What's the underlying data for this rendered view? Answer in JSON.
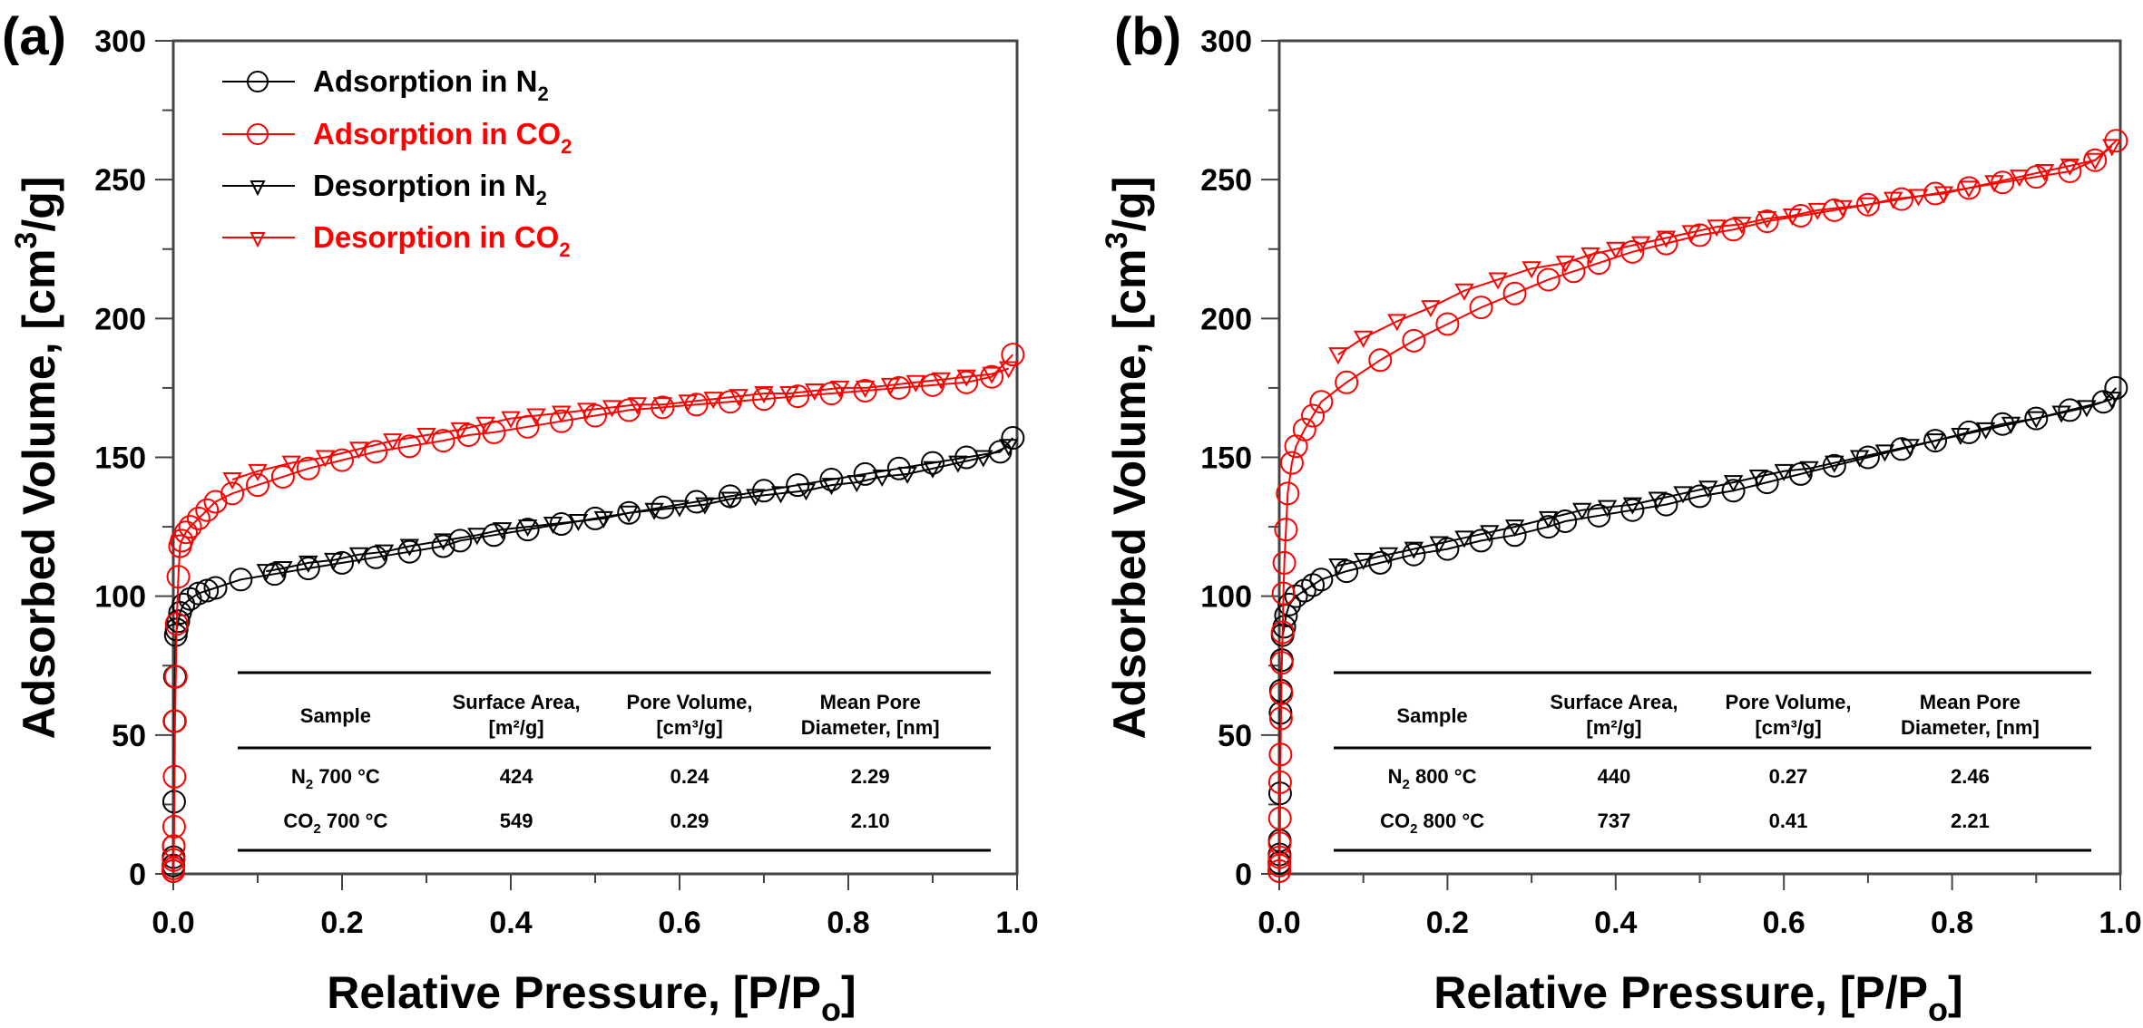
{
  "chart_data": [
    {
      "type": "scatter",
      "panel_label": "(a)",
      "xlabel": "Relative Pressure, [P/Po]",
      "xlabel_main": "Relative Pressure, [P/P",
      "xlabel_sub": "o",
      "xlabel_end": "]",
      "ylabel": "Adsorbed Volume, [cm3/g]",
      "ylabel_main": "Adsorbed Volume, [cm",
      "ylabel_sup": "3",
      "ylabel_end": "/g]",
      "xlim": [
        0,
        1.0
      ],
      "ylim": [
        0,
        300
      ],
      "xticks": [
        "0.0",
        "0.2",
        "0.4",
        "0.6",
        "0.8",
        "1.0"
      ],
      "yticks": [
        "0",
        "50",
        "100",
        "150",
        "200",
        "250",
        "300"
      ],
      "legend_position": "top-left",
      "legend": [
        {
          "main": "Adsorption in N",
          "sub": "2",
          "color": "#000000",
          "marker": "circle"
        },
        {
          "main": "Adsorption in CO",
          "sub": "2",
          "color": "#ff0000",
          "marker": "circle"
        },
        {
          "main": "Desorption in N",
          "sub": "2",
          "color": "#000000",
          "marker": "triangle-down"
        },
        {
          "main": "Desorption in CO",
          "sub": "2",
          "color": "#ff0000",
          "marker": "triangle-down"
        }
      ],
      "series": [
        {
          "name": "Adsorption in N2",
          "color": "#000000",
          "marker": "circle",
          "x": [
            0.0001,
            0.0002,
            0.0004,
            0.0006,
            0.001,
            0.0015,
            0.002,
            0.003,
            0.004,
            0.006,
            0.008,
            0.012,
            0.02,
            0.03,
            0.04,
            0.05,
            0.08,
            0.12,
            0.16,
            0.2,
            0.24,
            0.28,
            0.32,
            0.34,
            0.38,
            0.42,
            0.46,
            0.5,
            0.54,
            0.58,
            0.62,
            0.66,
            0.7,
            0.74,
            0.78,
            0.82,
            0.86,
            0.9,
            0.94,
            0.98,
            0.995
          ],
          "y": [
            1,
            3,
            6,
            10,
            26,
            55,
            71,
            86,
            88,
            91,
            94,
            97,
            99,
            101,
            102,
            103,
            106,
            108,
            110,
            112,
            114,
            116,
            118,
            120,
            122,
            124,
            126,
            128,
            130,
            132,
            134,
            136,
            138,
            140,
            142,
            144,
            146,
            148,
            150,
            152,
            157
          ]
        },
        {
          "name": "Adsorption in CO2",
          "color": "#ff0000",
          "marker": "circle",
          "x": [
            0.0001,
            0.0002,
            0.0004,
            0.0006,
            0.001,
            0.0015,
            0.002,
            0.003,
            0.004,
            0.006,
            0.008,
            0.01,
            0.015,
            0.02,
            0.03,
            0.04,
            0.05,
            0.07,
            0.1,
            0.13,
            0.16,
            0.2,
            0.24,
            0.28,
            0.32,
            0.35,
            0.38,
            0.42,
            0.46,
            0.5,
            0.54,
            0.58,
            0.62,
            0.66,
            0.7,
            0.74,
            0.78,
            0.82,
            0.86,
            0.9,
            0.94,
            0.97,
            0.995
          ],
          "y": [
            1,
            2,
            5,
            10,
            17,
            35,
            55,
            71,
            90,
            107,
            118,
            120,
            123,
            125,
            128,
            131,
            134,
            137,
            140,
            143,
            146,
            149,
            152,
            154,
            156,
            158,
            159,
            161,
            163,
            165,
            167,
            168,
            169,
            170,
            171,
            172,
            173,
            174,
            175,
            176,
            177,
            179,
            187
          ]
        },
        {
          "name": "Desorption in N2",
          "color": "#000000",
          "marker": "triangle-down",
          "x": [
            0.99,
            0.96,
            0.93,
            0.9,
            0.87,
            0.84,
            0.81,
            0.78,
            0.75,
            0.72,
            0.69,
            0.66,
            0.63,
            0.6,
            0.57,
            0.54,
            0.51,
            0.48,
            0.45,
            0.42,
            0.39,
            0.36,
            0.32,
            0.28,
            0.25,
            0.22,
            0.19,
            0.16,
            0.13,
            0.11
          ],
          "y": [
            154,
            150,
            148,
            146,
            144,
            143,
            141,
            140,
            138,
            137,
            136,
            135,
            133,
            132,
            131,
            130,
            128,
            127,
            126,
            125,
            124,
            122,
            120,
            118,
            116,
            115,
            113,
            112,
            110,
            109
          ]
        },
        {
          "name": "Desorption in CO2",
          "color": "#ff0000",
          "marker": "triangle-down",
          "x": [
            0.99,
            0.97,
            0.94,
            0.91,
            0.88,
            0.85,
            0.82,
            0.79,
            0.76,
            0.73,
            0.7,
            0.67,
            0.64,
            0.61,
            0.58,
            0.55,
            0.52,
            0.49,
            0.46,
            0.43,
            0.4,
            0.37,
            0.34,
            0.3,
            0.26,
            0.22,
            0.18,
            0.14,
            0.1,
            0.07
          ],
          "y": [
            182,
            180,
            179,
            178,
            177,
            176,
            175,
            175,
            174,
            173,
            173,
            172,
            171,
            170,
            169,
            169,
            168,
            167,
            166,
            165,
            164,
            162,
            160,
            158,
            156,
            153,
            150,
            148,
            145,
            142
          ]
        }
      ],
      "table": {
        "headers": [
          {
            "line1": "Sample",
            "line2": ""
          },
          {
            "line1": "Surface Area,",
            "line2": "[m²/g]"
          },
          {
            "line1": "Pore Volume,",
            "line2": "[cm³/g]"
          },
          {
            "line1": "Mean Pore",
            "line2": "Diameter, [nm]"
          }
        ],
        "rows": [
          {
            "sample_main": "N",
            "sample_sub": "2",
            "sample_rest": " 700 °C",
            "surface_area": "424",
            "pore_volume": "0.24",
            "pore_diameter": "2.29"
          },
          {
            "sample_main": "CO",
            "sample_sub": "2",
            "sample_rest": " 700 °C",
            "surface_area": "549",
            "pore_volume": "0.29",
            "pore_diameter": "2.10"
          }
        ]
      }
    },
    {
      "type": "scatter",
      "panel_label": "(b)",
      "xlabel": "Relative Pressure, [P/Po]",
      "xlabel_main": "Relative Pressure, [P/P",
      "xlabel_sub": "o",
      "xlabel_end": "]",
      "ylabel": "Adsorbed Volume, [cm3/g]",
      "ylabel_main": "Adsorbed Volume, [cm",
      "ylabel_sup": "3",
      "ylabel_end": "/g]",
      "xlim": [
        0,
        1.0
      ],
      "ylim": [
        0,
        300
      ],
      "xticks": [
        "0.0",
        "0.2",
        "0.4",
        "0.6",
        "0.8",
        "1.0"
      ],
      "yticks": [
        "0",
        "50",
        "100",
        "150",
        "200",
        "250",
        "300"
      ],
      "series": [
        {
          "name": "Adsorption in N2",
          "color": "#000000",
          "marker": "circle",
          "x": [
            0.0001,
            0.0002,
            0.0004,
            0.0006,
            0.001,
            0.0015,
            0.002,
            0.003,
            0.004,
            0.006,
            0.008,
            0.012,
            0.02,
            0.03,
            0.04,
            0.05,
            0.08,
            0.12,
            0.16,
            0.2,
            0.24,
            0.28,
            0.32,
            0.34,
            0.38,
            0.42,
            0.46,
            0.5,
            0.54,
            0.58,
            0.62,
            0.66,
            0.7,
            0.74,
            0.78,
            0.82,
            0.86,
            0.9,
            0.94,
            0.98,
            0.995
          ],
          "y": [
            1,
            4,
            7,
            12,
            29,
            58,
            66,
            77,
            86,
            89,
            93,
            97,
            100,
            102,
            104,
            106,
            109,
            112,
            115,
            117,
            120,
            122,
            125,
            127,
            129,
            131,
            133,
            136,
            138,
            141,
            144,
            147,
            150,
            153,
            156,
            159,
            162,
            164,
            167,
            170,
            175
          ]
        },
        {
          "name": "Adsorption in CO2",
          "color": "#ff0000",
          "marker": "circle",
          "x": [
            0.0001,
            0.0002,
            0.0004,
            0.0006,
            0.0008,
            0.001,
            0.0015,
            0.002,
            0.0025,
            0.003,
            0.004,
            0.005,
            0.006,
            0.008,
            0.01,
            0.015,
            0.02,
            0.03,
            0.04,
            0.05,
            0.08,
            0.12,
            0.16,
            0.2,
            0.24,
            0.28,
            0.32,
            0.35,
            0.38,
            0.42,
            0.46,
            0.5,
            0.54,
            0.58,
            0.62,
            0.66,
            0.7,
            0.74,
            0.78,
            0.82,
            0.86,
            0.9,
            0.94,
            0.97,
            0.995
          ],
          "y": [
            1,
            3,
            6,
            11,
            20,
            33,
            43,
            56,
            65,
            76,
            87,
            101,
            112,
            124,
            137,
            148,
            154,
            160,
            165,
            170,
            177,
            185,
            192,
            198,
            204,
            209,
            214,
            217,
            220,
            224,
            227,
            230,
            232,
            235,
            237,
            239,
            241,
            243,
            245,
            247,
            249,
            251,
            253,
            257,
            264
          ]
        },
        {
          "name": "Desorption in N2",
          "color": "#000000",
          "marker": "triangle-down",
          "x": [
            0.99,
            0.96,
            0.93,
            0.9,
            0.87,
            0.84,
            0.81,
            0.78,
            0.75,
            0.72,
            0.69,
            0.66,
            0.63,
            0.6,
            0.57,
            0.54,
            0.51,
            0.48,
            0.45,
            0.42,
            0.39,
            0.36,
            0.32,
            0.28,
            0.25,
            0.22,
            0.19,
            0.16,
            0.13,
            0.1,
            0.07
          ],
          "y": [
            171,
            168,
            166,
            164,
            162,
            160,
            158,
            156,
            154,
            152,
            150,
            148,
            146,
            145,
            143,
            141,
            139,
            137,
            135,
            133,
            132,
            131,
            128,
            125,
            123,
            121,
            119,
            117,
            115,
            113,
            111
          ]
        },
        {
          "name": "Desorption in CO2",
          "color": "#ff0000",
          "marker": "triangle-down",
          "x": [
            0.99,
            0.97,
            0.94,
            0.91,
            0.88,
            0.85,
            0.82,
            0.79,
            0.76,
            0.73,
            0.7,
            0.67,
            0.64,
            0.61,
            0.58,
            0.55,
            0.52,
            0.49,
            0.46,
            0.43,
            0.4,
            0.37,
            0.34,
            0.3,
            0.26,
            0.22,
            0.18,
            0.14,
            0.1,
            0.07
          ],
          "y": [
            262,
            257,
            255,
            253,
            251,
            249,
            247,
            245,
            244,
            243,
            241,
            240,
            239,
            237,
            236,
            234,
            233,
            231,
            229,
            227,
            225,
            223,
            220,
            218,
            214,
            210,
            204,
            199,
            193,
            187
          ]
        }
      ],
      "table": {
        "headers": [
          {
            "line1": "Sample",
            "line2": ""
          },
          {
            "line1": "Surface Area,",
            "line2": "[m²/g]"
          },
          {
            "line1": "Pore Volume,",
            "line2": "[cm³/g]"
          },
          {
            "line1": "Mean Pore",
            "line2": "Diameter, [nm]"
          }
        ],
        "rows": [
          {
            "sample_main": "N",
            "sample_sub": "2",
            "sample_rest": " 800 °C",
            "surface_area": "440",
            "pore_volume": "0.27",
            "pore_diameter": "2.46"
          },
          {
            "sample_main": "CO",
            "sample_sub": "2",
            "sample_rest": " 800 °C",
            "surface_area": "737",
            "pore_volume": "0.41",
            "pore_diameter": "2.21"
          }
        ]
      }
    }
  ]
}
